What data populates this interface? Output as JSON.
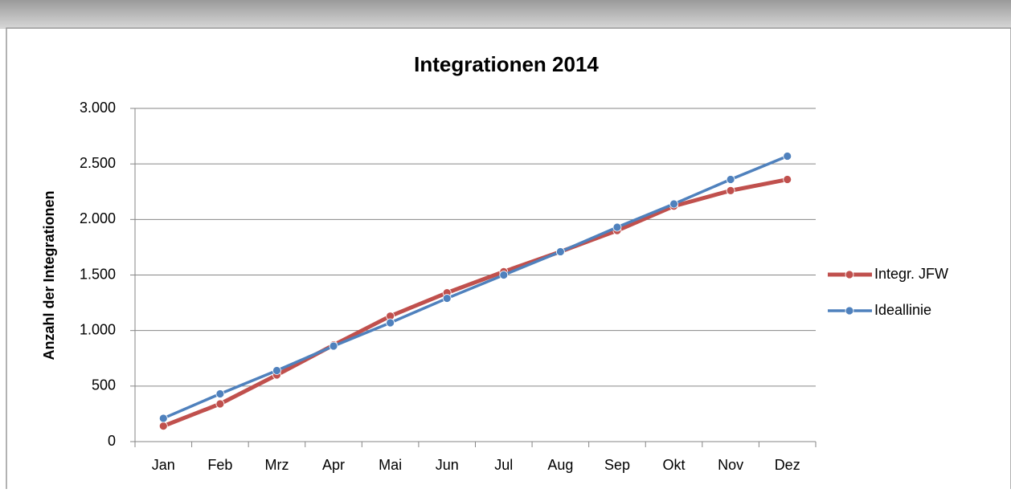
{
  "chart_data": {
    "type": "line",
    "title": "Integrationen 2014",
    "y_label": "Anzahl der Integrationen",
    "categories": [
      "Jan",
      "Feb",
      "Mrz",
      "Apr",
      "Mai",
      "Jun",
      "Jul",
      "Aug",
      "Sep",
      "Okt",
      "Nov",
      "Dez"
    ],
    "series": [
      {
        "name": "Integr. JFW",
        "color": "#c0504d",
        "values": [
          140,
          340,
          600,
          870,
          1130,
          1340,
          1530,
          1710,
          1900,
          2120,
          2260,
          2360
        ]
      },
      {
        "name": "Ideallinie",
        "color": "#4f81bd",
        "values": [
          210,
          430,
          640,
          860,
          1070,
          1290,
          1500,
          1710,
          1930,
          2140,
          2360,
          2570
        ]
      }
    ],
    "ylim": [
      0,
      3000
    ],
    "yticks": [
      0,
      500,
      {
        "value": 1000,
        "label": "1.000"
      },
      {
        "value": 1500,
        "label": "1.500"
      },
      {
        "value": 2000,
        "label": "2.000"
      },
      {
        "value": 2500,
        "label": "2.500"
      },
      {
        "value": 3000,
        "label": "3.000"
      }
    ],
    "grid": true,
    "legend": "right"
  }
}
